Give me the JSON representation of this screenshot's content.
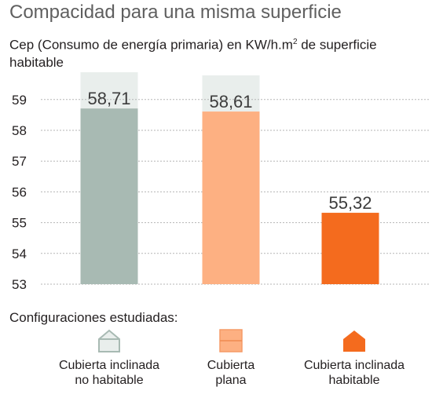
{
  "title": "Compacidad para una misma superficie",
  "chart_data": {
    "type": "bar",
    "title": "Compacidad para una misma superficie",
    "ylabel_main": "Cep (Consumo de energía primaria) en KW/h.m",
    "ylabel_sup": "2",
    "ylabel_rest": " de superficie habitable",
    "categories": [
      "Cubierta inclinada no habitable",
      "Cubierta plana",
      "Cubierta inclinada habitable"
    ],
    "values": [
      58.71,
      58.61,
      55.32
    ],
    "value_labels": [
      "58,71",
      "58,61",
      "55,32"
    ],
    "colors": [
      "#a8bab3",
      "#fdb082",
      "#f46b1e"
    ],
    "label_bg_color": "#e9eeec",
    "ylim": [
      53,
      59.8
    ],
    "yticks": [
      53,
      54,
      55,
      56,
      57,
      58,
      59
    ],
    "grid": true
  },
  "legend": {
    "title": "Configuraciones estudiadas:",
    "items": [
      {
        "line1": "Cubierta inclinada",
        "line2": "no habitable",
        "icon": "house-outline-icon",
        "color": "#a8bab3"
      },
      {
        "line1": "Cubierta",
        "line2": "plana",
        "icon": "flat-roof-icon",
        "color": "#fdb082"
      },
      {
        "line1": "Cubierta inclinada",
        "line2": "habitable",
        "icon": "house-solid-icon",
        "color": "#f46b1e"
      }
    ]
  }
}
